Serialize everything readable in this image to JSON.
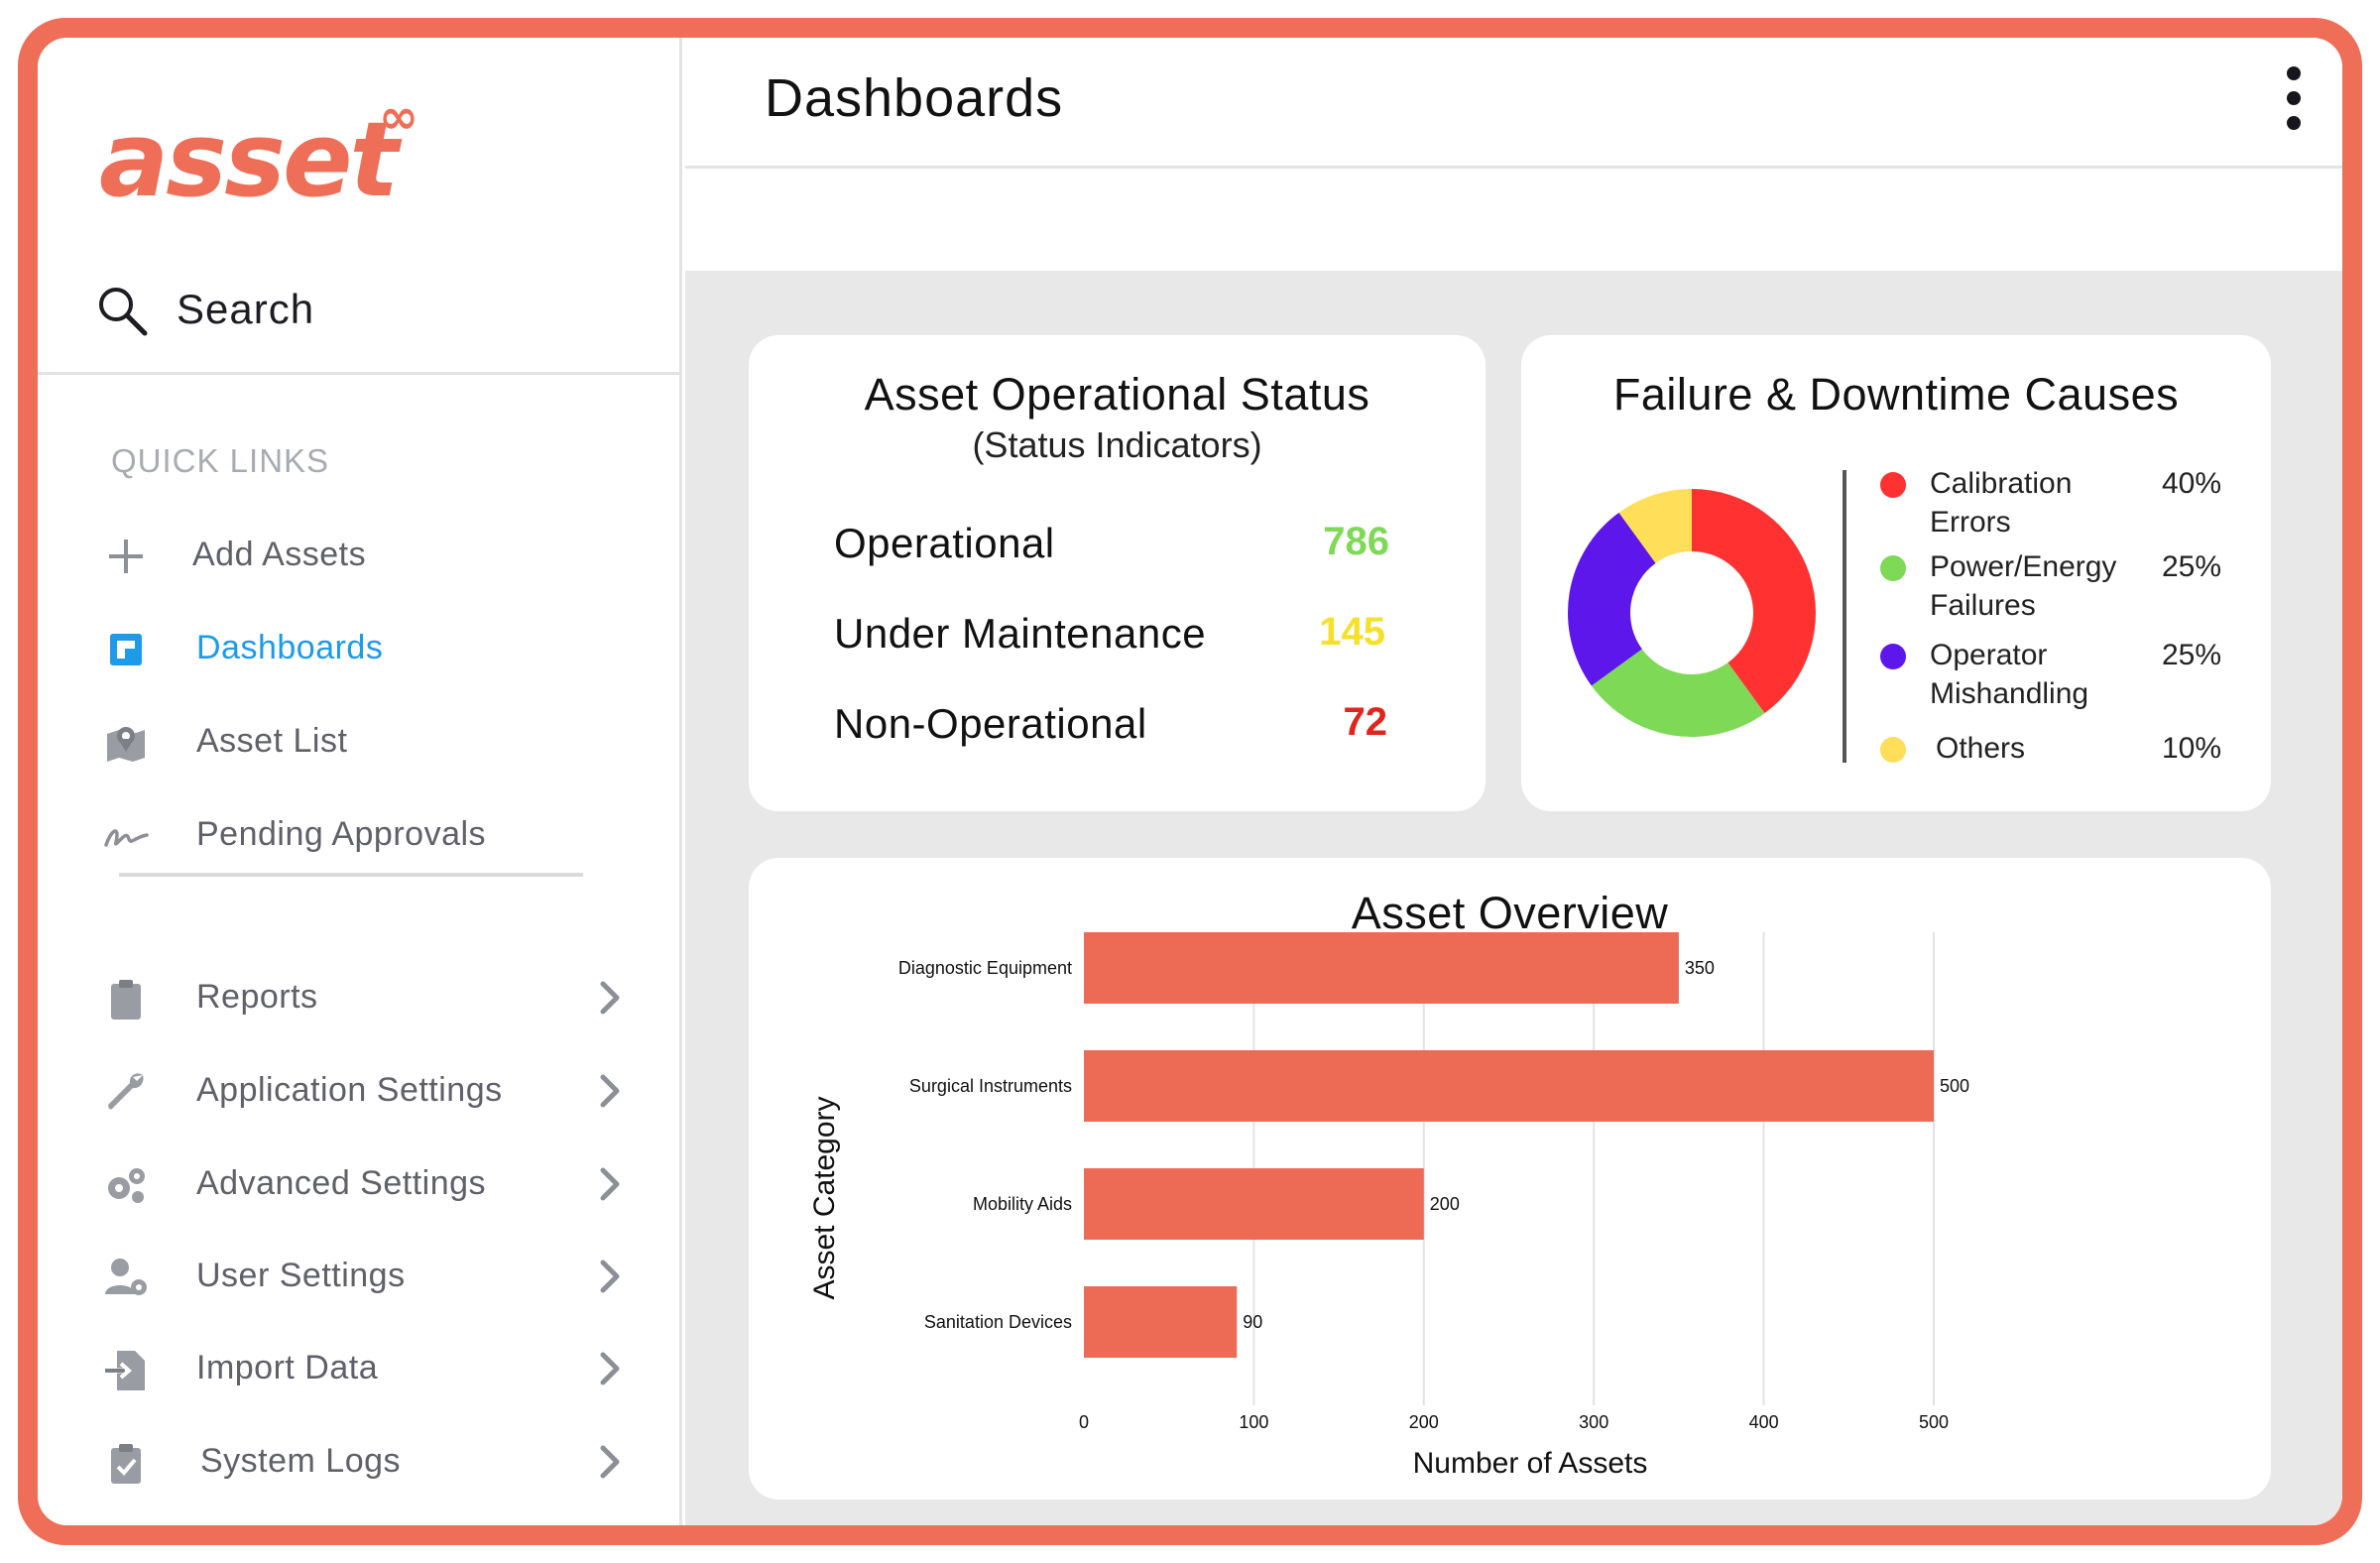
{
  "app": {
    "brand": "asset",
    "brand_mark": "∞",
    "accent_color": "#ef6e57",
    "active_color": "#1e9be8"
  },
  "sidebar": {
    "search_label": "Search",
    "quick_links_label": "QUICK LINKS",
    "quick_links": [
      {
        "label": "Add Assets",
        "icon": "plus-icon"
      },
      {
        "label": "Dashboards",
        "icon": "dashboard-icon",
        "active": true
      },
      {
        "label": "Asset List",
        "icon": "map-pin-icon"
      },
      {
        "label": "Pending Approvals",
        "icon": "signature-icon"
      }
    ],
    "menu": [
      {
        "label": "Reports",
        "icon": "clipboard-icon"
      },
      {
        "label": "Application Settings",
        "icon": "wrench-icon"
      },
      {
        "label": "Advanced Settings",
        "icon": "gears-icon"
      },
      {
        "label": "User Settings",
        "icon": "user-gear-icon"
      },
      {
        "label": "Import Data",
        "icon": "import-icon"
      },
      {
        "label": "System Logs",
        "icon": "clipboard-check-icon"
      }
    ]
  },
  "header": {
    "title": "Dashboards"
  },
  "status_card": {
    "title": "Asset Operational Status",
    "subtitle": "(Status Indicators)",
    "rows": [
      {
        "label": "Operational",
        "value": "786",
        "color": "#7ed957"
      },
      {
        "label": "Under Maintenance",
        "value": "145",
        "color": "#f5e02a"
      },
      {
        "label": "Non-Operational",
        "value": "72",
        "color": "#e3241d"
      }
    ]
  },
  "failure_card": {
    "title": "Failure & Downtime Causes",
    "legend": [
      {
        "label": "Calibration Errors",
        "pct": "40%",
        "color": "#ff3131"
      },
      {
        "label": "Power/Energy Failures",
        "pct": "25%",
        "color": "#7ed957"
      },
      {
        "label": "Operator Mishandling",
        "pct": "25%",
        "color": "#5e17eb"
      },
      {
        "label": "Others",
        "pct": "10%",
        "color": "#ffde59"
      }
    ]
  },
  "overview_card": {
    "title": "Asset Overview"
  },
  "chart_data": [
    {
      "type": "pie",
      "title": "Failure & Downtime Causes",
      "categories": [
        "Calibration Errors",
        "Power/Energy Failures",
        "Operator Mishandling",
        "Others"
      ],
      "values": [
        40,
        25,
        25,
        10
      ],
      "colors": [
        "#ff3131",
        "#7ed957",
        "#5e17eb",
        "#ffde59"
      ],
      "donut": true,
      "legend_position": "right"
    },
    {
      "type": "bar",
      "orientation": "horizontal",
      "title": "Asset Overview",
      "categories": [
        "Diagnostic Equipment",
        "Surgical Instruments",
        "Mobility Aids",
        "Sanitation Devices"
      ],
      "values": [
        350,
        500,
        200,
        90
      ],
      "value_labels": [
        "350",
        "500",
        "200",
        "90"
      ],
      "xlabel": "Number of Assets",
      "ylabel": "Asset Category",
      "xlim": [
        0,
        500
      ],
      "xticks": [
        "0",
        "100",
        "200",
        "300",
        "400",
        "500"
      ],
      "grid": true,
      "bar_color": "#ed6a55"
    }
  ]
}
